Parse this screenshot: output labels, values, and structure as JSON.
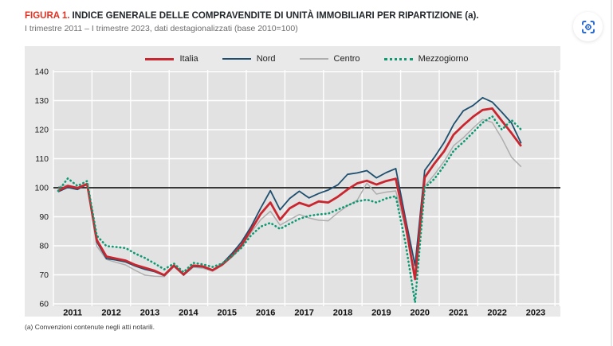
{
  "page": {
    "title_prefix": "FIGURA 1.",
    "title_main": "INDICE GENERALE DELLE COMPRAVENDITE DI UNITÀ IMMOBILIARI PER RIPARTIZIONE (a).",
    "subtitle": "I trimestre 2011 – I trimestre 2023, dati destagionalizzati (base 2010=100)",
    "footnote": "(a) Convenzioni contenute negli atti notarili.",
    "capture_icon": "scan-focus-icon"
  },
  "colors": {
    "accent_red": "#e5301f",
    "icon_blue": "#2b6bd0",
    "block_bg": "#e9e9e9",
    "plot_bg": "#e2e2e2",
    "gridline": "#ffffff",
    "baseline": "#1c1c1c",
    "axis_text": "#1a1a1a"
  },
  "chart_data": {
    "type": "line",
    "title": "Indice generale delle compravendite di unità immobiliari per ripartizione",
    "frequency": "quarterly",
    "x_start": "2011-T1",
    "x_end": "2023-T1",
    "categories": [
      "2011-T1",
      "2011-T2",
      "2011-T3",
      "2011-T4",
      "2012-T1",
      "2012-T2",
      "2012-T3",
      "2012-T4",
      "2013-T1",
      "2013-T2",
      "2013-T3",
      "2013-T4",
      "2014-T1",
      "2014-T2",
      "2014-T3",
      "2014-T4",
      "2015-T1",
      "2015-T2",
      "2015-T3",
      "2015-T4",
      "2016-T1",
      "2016-T2",
      "2016-T3",
      "2016-T4",
      "2017-T1",
      "2017-T2",
      "2017-T3",
      "2017-T4",
      "2018-T1",
      "2018-T2",
      "2018-T3",
      "2018-T4",
      "2019-T1",
      "2019-T2",
      "2019-T3",
      "2019-T4",
      "2020-T1",
      "2020-T2",
      "2020-T3",
      "2020-T4",
      "2021-T1",
      "2021-T2",
      "2021-T3",
      "2021-T4",
      "2022-T1",
      "2022-T2",
      "2022-T3",
      "2022-T4",
      "2023-T1"
    ],
    "x_axis_years": [
      2011,
      2012,
      2013,
      2014,
      2015,
      2016,
      2017,
      2018,
      2019,
      2020,
      2021,
      2022,
      2023
    ],
    "ylim": [
      60,
      140
    ],
    "ytick_step": 10,
    "baseline": 100,
    "grid": true,
    "legend_position": "top-center",
    "series": [
      {
        "name": "Italia",
        "color": "#c9262f",
        "style": "solid",
        "width": 2.8,
        "values": [
          99.0,
          100.6,
          99.9,
          101.3,
          82.0,
          76.3,
          75.6,
          74.9,
          73.4,
          72.4,
          71.4,
          69.9,
          73.2,
          70.1,
          73.2,
          72.9,
          71.6,
          73.5,
          76.5,
          80.2,
          85.5,
          91.0,
          94.9,
          89.0,
          92.9,
          94.8,
          93.7,
          95.3,
          94.9,
          96.9,
          99.4,
          101.5,
          102.4,
          101.1,
          102.3,
          103.1,
          87.5,
          68.5,
          103.5,
          108.3,
          112.5,
          118.3,
          121.5,
          124.4,
          126.8,
          127.3,
          123.0,
          118.8,
          114.3
        ]
      },
      {
        "name": "Nord",
        "color": "#1f4f6f",
        "style": "solid",
        "width": 1.8,
        "values": [
          98.6,
          100.1,
          99.4,
          101.2,
          81.4,
          75.6,
          75.1,
          74.4,
          73.0,
          71.9,
          71.1,
          69.7,
          73.0,
          69.9,
          72.9,
          72.7,
          71.5,
          73.8,
          77.3,
          81.3,
          86.6,
          93.0,
          99.0,
          92.4,
          96.3,
          98.8,
          96.5,
          98.0,
          99.2,
          101.0,
          104.6,
          105.1,
          105.9,
          103.4,
          105.2,
          106.6,
          89.5,
          73.2,
          106.0,
          110.5,
          115.5,
          121.8,
          126.5,
          128.3,
          131.0,
          129.5,
          126.0,
          122.3,
          115.3
        ]
      },
      {
        "name": "Centro",
        "color": "#aeaeae",
        "style": "solid",
        "width": 1.5,
        "values": [
          100.3,
          100.9,
          100.1,
          100.9,
          79.9,
          75.3,
          74.3,
          73.4,
          71.5,
          69.9,
          69.5,
          69.4,
          72.8,
          69.9,
          72.6,
          72.3,
          71.2,
          73.2,
          76.0,
          79.4,
          84.6,
          89.0,
          91.9,
          87.1,
          89.0,
          90.8,
          89.6,
          88.8,
          88.6,
          91.4,
          93.8,
          95.7,
          101.6,
          97.8,
          98.5,
          98.9,
          86.0,
          70.5,
          100.5,
          104.5,
          109.0,
          114.5,
          117.2,
          120.5,
          123.5,
          122.5,
          117.0,
          110.5,
          107.2
        ]
      },
      {
        "name": "Mezzogiorno",
        "color": "#0d9a72",
        "style": "dotted",
        "width": 2.6,
        "values": [
          98.9,
          103.2,
          100.6,
          102.3,
          83.5,
          79.9,
          79.6,
          79.2,
          77.3,
          75.8,
          73.9,
          71.9,
          73.9,
          70.9,
          74.1,
          73.6,
          72.7,
          73.9,
          76.4,
          79.3,
          83.6,
          86.6,
          87.9,
          85.8,
          87.6,
          89.3,
          90.3,
          90.8,
          91.1,
          92.5,
          93.9,
          95.3,
          95.9,
          94.9,
          96.3,
          97.1,
          81.0,
          60.5,
          100.0,
          103.0,
          107.5,
          112.7,
          115.7,
          119.0,
          122.4,
          124.6,
          120.0,
          123.3,
          120.0
        ]
      }
    ]
  }
}
